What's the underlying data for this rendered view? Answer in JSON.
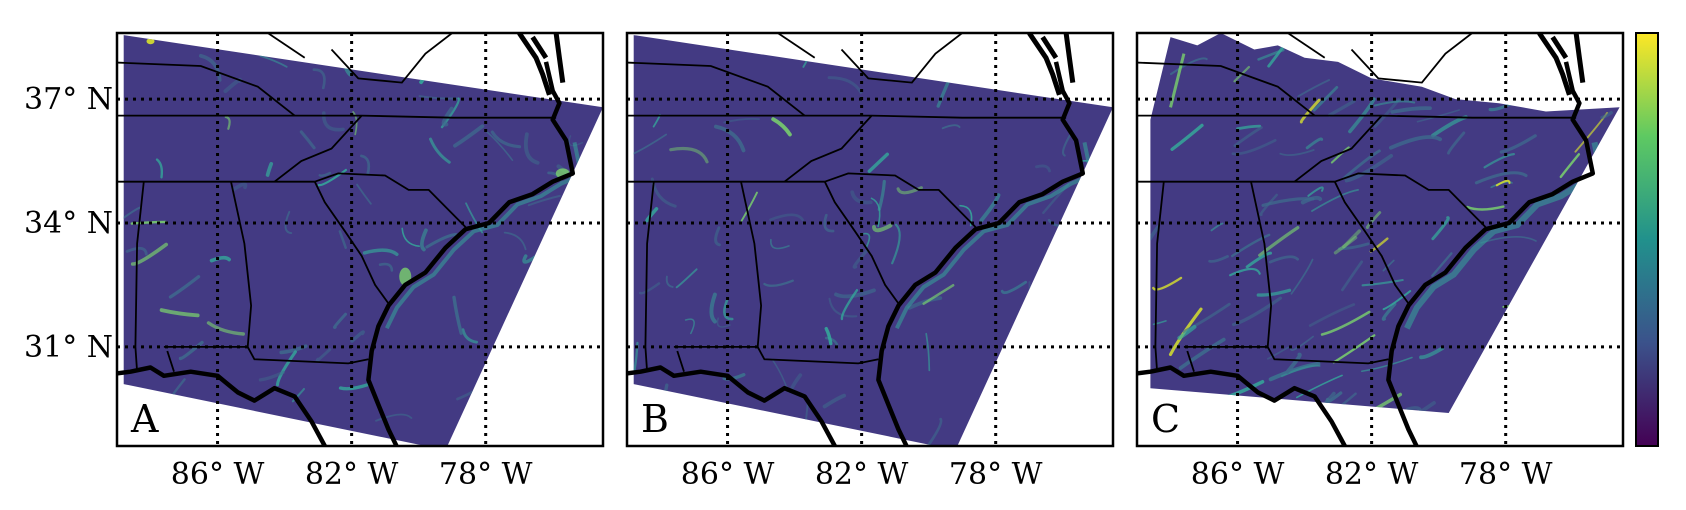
{
  "panels": [
    {
      "id": "A",
      "label": "A"
    },
    {
      "id": "B",
      "label": "B"
    },
    {
      "id": "C",
      "label": "C"
    }
  ],
  "lat_ticks": [
    {
      "value": 37,
      "label": "37° N"
    },
    {
      "value": 34,
      "label": "34° N"
    },
    {
      "value": 31,
      "label": "31° N"
    }
  ],
  "lon_ticks": [
    {
      "value": -86,
      "label": "86° W"
    },
    {
      "value": -82,
      "label": "82° W"
    },
    {
      "value": -78,
      "label": "78° W"
    }
  ],
  "map_extent": {
    "lon_min": -89.0,
    "lon_max": -74.5,
    "lat_max": 38.6,
    "lat_min": 28.6
  },
  "gridlines": "dotted",
  "colorbar": {
    "colormap": "viridis",
    "colors": [
      "#440154",
      "#3b528b",
      "#21918c",
      "#5ec962",
      "#fde725"
    ],
    "tick_labels_shown": false
  },
  "field": {
    "base_color": "#433a83",
    "feature_colors": [
      "#3e6b8d",
      "#35a69a",
      "#7ad26d",
      "#d9e32c"
    ]
  }
}
